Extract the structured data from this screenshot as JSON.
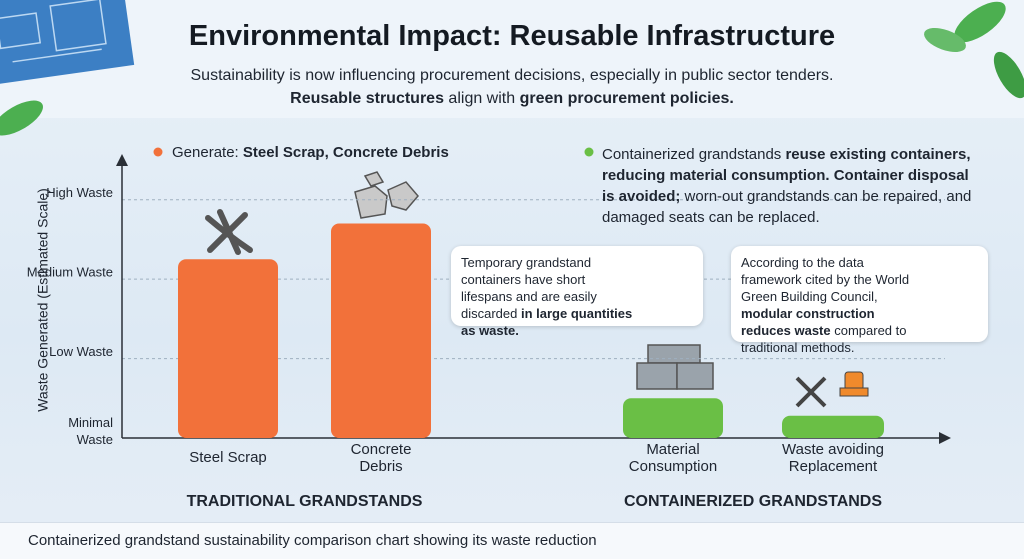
{
  "title": "Environmental Impact: Reusable Infrastructure",
  "subtitle": [
    [
      {
        "text": "Sustainability is now influencing procurement decisions, especially in public sector tenders.",
        "bold": false
      }
    ],
    [
      {
        "text": "Reusable structures",
        "bold": true
      },
      {
        "text": " align with ",
        "bold": false
      },
      {
        "text": "green procurement policies.",
        "bold": true
      }
    ]
  ],
  "legend": [
    {
      "text": "Generate: ",
      "bold": false
    },
    {
      "text": "Steel Scrap, Concrete Debris",
      "bold": true
    }
  ],
  "note": [
    {
      "text": "Containerized grandstands ",
      "bold": false
    },
    {
      "text": "reuse existing containers, reducing material consumption. Container disposal is avoided;",
      "bold": true
    },
    {
      "text": " worn-out grandstands can be repaired, and damaged seats can be replaced.",
      "bold": false
    }
  ],
  "box1": [
    {
      "text": "Temporary grandstand containers have short lifespans and are easily discarded ",
      "bold": false
    },
    {
      "text": "in large quantities as waste.",
      "bold": true
    }
  ],
  "box2": [
    {
      "text": "According to the data framework cited by the World Green Building Council, ",
      "bold": false
    },
    {
      "text": "modular construction reduces waste",
      "bold": true
    },
    {
      "text": " compared to traditional methods.",
      "bold": false
    }
  ],
  "caption": "Containerized grandstand sustainability comparison chart showing its waste reduction",
  "chart_data": {
    "type": "bar",
    "y_label": "Waste Generated (Estimated Scale)",
    "categories": [
      "Steel Scrap",
      "Concrete Debris",
      "Material Consumption",
      "Waste avoiding Replacement"
    ],
    "values": [
      2.25,
      2.7,
      0.5,
      0.28
    ],
    "colors": [
      "#f2713a",
      "#f2713a",
      "#6abf45",
      "#6abf45"
    ],
    "groups": [
      "TRADITIONAL GRANDSTANDS",
      "CONTAINERIZED GRANDSTANDS"
    ],
    "ylim": [
      0,
      3.5
    ],
    "yticks": [
      {
        "value": 0,
        "label": "Minimal Waste"
      },
      {
        "value": 1,
        "label": "Low Waste"
      },
      {
        "value": 2,
        "label": "Medium Waste"
      },
      {
        "value": 3,
        "label": "High Waste"
      }
    ],
    "grid": true
  }
}
